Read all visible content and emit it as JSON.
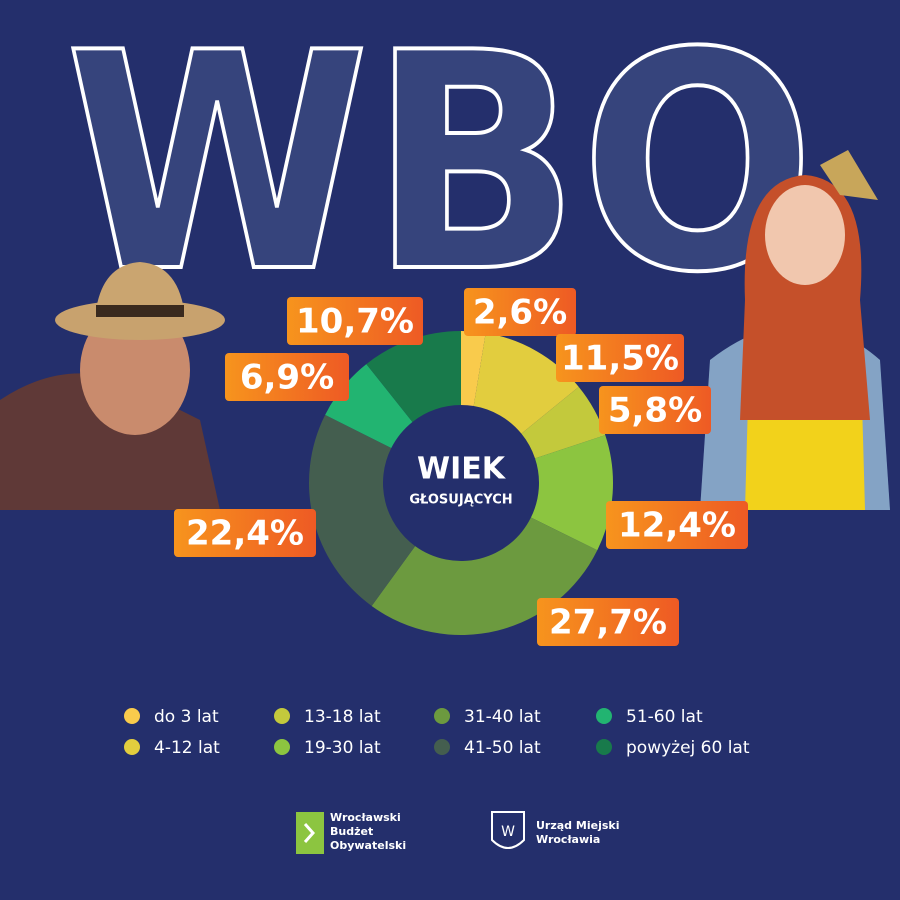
{
  "chart_data": {
    "type": "donut",
    "title": "WBO",
    "center_title": "WIEK",
    "center_subtitle": "GŁOSUJĄCYCH",
    "categories": [
      "do 3 lat",
      "4-12 lat",
      "13-18 lat",
      "19-30 lat",
      "31-40 lat",
      "41-50 lat",
      "51-60 lat",
      "powyżej 60 lat"
    ],
    "values": [
      2.6,
      11.5,
      5.8,
      12.4,
      27.7,
      22.4,
      6.9,
      10.7
    ],
    "value_labels": [
      "2,6%",
      "11,5%",
      "5,8%",
      "12,4%",
      "27,7%",
      "22,4%",
      "6,9%",
      "10,7%"
    ],
    "colors": [
      "#f9cb4c",
      "#e2cd3e",
      "#c3c93c",
      "#8cc540",
      "#6c9a3f",
      "#445e4f",
      "#22b471",
      "#187a4b"
    ]
  },
  "footer": {
    "logos": [
      {
        "lines": [
          "Wrocławski",
          "Budżet",
          "Obywatelski"
        ]
      },
      {
        "lines": [
          "Urząd Miejski",
          "Wrocławia"
        ]
      }
    ]
  }
}
